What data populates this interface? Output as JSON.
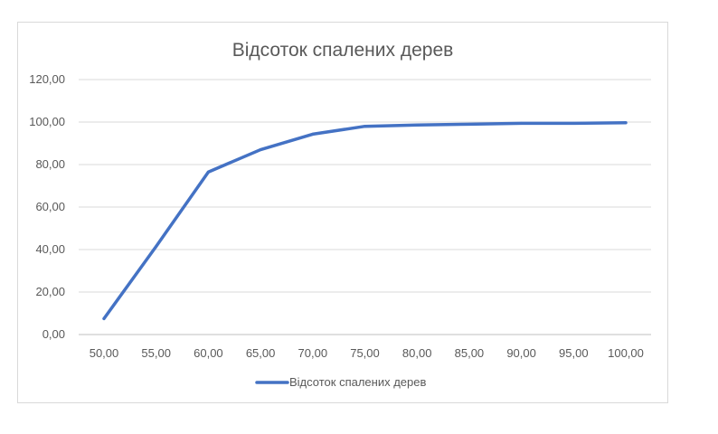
{
  "chart_data": {
    "type": "line",
    "title": "Відсоток спалених дерев",
    "xlabel": "",
    "ylabel": "",
    "x": [
      "50,00",
      "55,00",
      "60,00",
      "65,00",
      "70,00",
      "75,00",
      "80,00",
      "85,00",
      "90,00",
      "95,00",
      "100,00"
    ],
    "y_ticks": [
      "0,00",
      "20,00",
      "40,00",
      "60,00",
      "80,00",
      "100,00",
      "120,00"
    ],
    "ylim": [
      0,
      120
    ],
    "grid": true,
    "legend_position": "bottom",
    "series": [
      {
        "name": "Відсоток спалених дерев",
        "color": "#4472c4",
        "values": [
          7.5,
          41.5,
          76.5,
          87,
          94.3,
          98,
          98.6,
          99,
          99.4,
          99.4,
          99.7
        ]
      }
    ]
  }
}
